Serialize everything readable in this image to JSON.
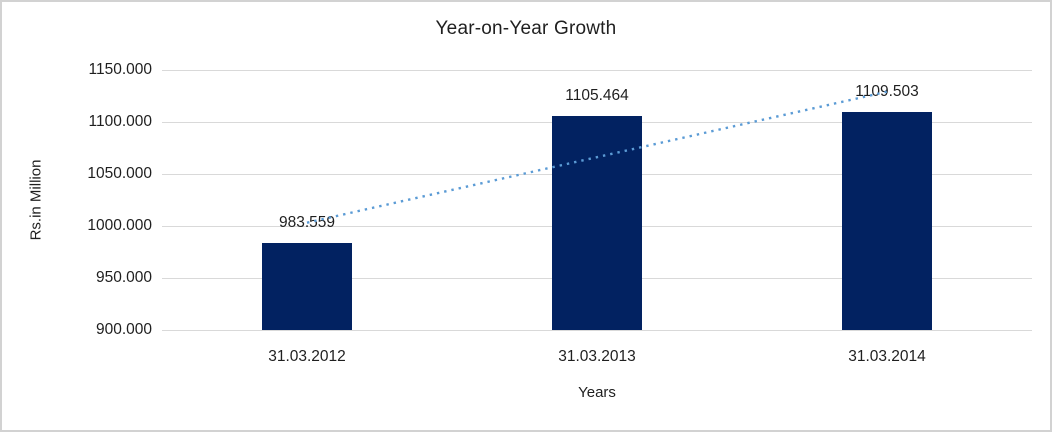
{
  "chart_data": {
    "type": "bar",
    "title": "Year-on-Year Growth",
    "xlabel": "Years",
    "ylabel": "Rs.in Million",
    "categories": [
      "31.03.2012",
      "31.03.2013",
      "31.03.2014"
    ],
    "values": [
      983.559,
      1105.464,
      1109.503
    ],
    "data_labels": [
      "983.559",
      "1105.464",
      "1109.503"
    ],
    "ylim": [
      900,
      1150
    ],
    "ytick_step": 50,
    "ytick_labels": [
      "900.000",
      "950.000",
      "1000.000",
      "1050.000",
      "1100.000",
      "1150.000"
    ],
    "grid": true,
    "legend": "none",
    "colors": {
      "bar": "#022261",
      "trendline": "#5B9BD5",
      "gridline": "#D9D9D9",
      "text": "#1f1f1f",
      "frame_border": "#d2d2d2",
      "background": "#ffffff"
    },
    "trendline": {
      "type": "linear",
      "style": "dotted",
      "endpoint_values": [
        1003.2,
        1129.15
      ]
    }
  }
}
